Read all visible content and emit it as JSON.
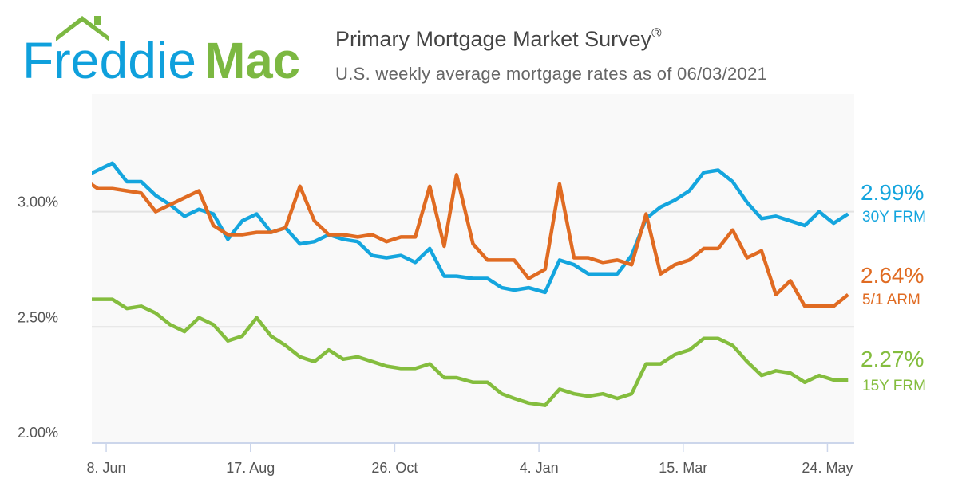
{
  "logo": {
    "word1": "Freddie",
    "word2": "Mac",
    "blue": "#0fa0dc",
    "green": "#7cb842"
  },
  "header": {
    "title": "Primary Mortgage Market Survey",
    "title_mark": "®",
    "subtitle": "U.S. weekly average mortgage rates as of 06/03/2021"
  },
  "chart_data": {
    "type": "line",
    "title": "Primary Mortgage Market Survey®",
    "subtitle": "U.S. weekly average mortgage rates as of 06/03/2021",
    "xlabel": "",
    "ylabel": "",
    "xlim": [
      "2020-06-01",
      "2021-06-06"
    ],
    "ylim": [
      2.0,
      3.51
    ],
    "grid": true,
    "y_ticks": [
      {
        "value": 2.0,
        "label": "2.00%"
      },
      {
        "value": 2.5,
        "label": "2.50%"
      },
      {
        "value": 3.0,
        "label": "3.00%"
      }
    ],
    "x_ticks": [
      {
        "date": "2020-06-08",
        "label": "8. Jun"
      },
      {
        "date": "2020-08-17",
        "label": "17. Aug"
      },
      {
        "date": "2020-10-26",
        "label": "26. Oct"
      },
      {
        "date": "2021-01-04",
        "label": "4. Jan"
      },
      {
        "date": "2021-03-15",
        "label": "15. Mar"
      },
      {
        "date": "2021-05-24",
        "label": "24. May"
      }
    ],
    "x": [
      "2020-05-28",
      "2020-06-04",
      "2020-06-11",
      "2020-06-18",
      "2020-06-25",
      "2020-07-02",
      "2020-07-09",
      "2020-07-16",
      "2020-07-23",
      "2020-07-30",
      "2020-08-06",
      "2020-08-13",
      "2020-08-20",
      "2020-08-27",
      "2020-09-03",
      "2020-09-10",
      "2020-09-17",
      "2020-09-24",
      "2020-10-01",
      "2020-10-08",
      "2020-10-15",
      "2020-10-22",
      "2020-10-29",
      "2020-11-05",
      "2020-11-12",
      "2020-11-19",
      "2020-11-25",
      "2020-12-03",
      "2020-12-10",
      "2020-12-17",
      "2020-12-23",
      "2020-12-30",
      "2021-01-07",
      "2021-01-14",
      "2021-01-21",
      "2021-01-28",
      "2021-02-04",
      "2021-02-11",
      "2021-02-18",
      "2021-02-25",
      "2021-03-04",
      "2021-03-11",
      "2021-03-18",
      "2021-03-25",
      "2021-04-01",
      "2021-04-08",
      "2021-04-15",
      "2021-04-22",
      "2021-04-29",
      "2021-05-06",
      "2021-05-13",
      "2021-05-20",
      "2021-05-27",
      "2021-06-03"
    ],
    "series": [
      {
        "name": "30Y FRM",
        "latest": "2.99%",
        "color": "#14a5de",
        "values": [
          3.15,
          3.18,
          3.21,
          3.13,
          3.13,
          3.07,
          3.03,
          2.98,
          3.01,
          2.99,
          2.88,
          2.96,
          2.99,
          2.91,
          2.93,
          2.86,
          2.87,
          2.9,
          2.88,
          2.87,
          2.81,
          2.8,
          2.81,
          2.78,
          2.84,
          2.72,
          2.72,
          2.71,
          2.71,
          2.67,
          2.66,
          2.67,
          2.65,
          2.79,
          2.77,
          2.73,
          2.73,
          2.73,
          2.81,
          2.97,
          3.02,
          3.05,
          3.09,
          3.17,
          3.18,
          3.13,
          3.04,
          2.97,
          2.98,
          2.96,
          2.94,
          3.0,
          2.95,
          2.99
        ]
      },
      {
        "name": "5/1 ARM",
        "latest": "2.64%",
        "color": "#e06b22",
        "values": [
          3.14,
          3.1,
          3.1,
          3.09,
          3.08,
          3.0,
          3.03,
          3.06,
          3.09,
          2.94,
          2.9,
          2.9,
          2.91,
          2.91,
          2.93,
          3.11,
          2.96,
          2.9,
          2.9,
          2.89,
          2.9,
          2.87,
          2.89,
          2.89,
          3.11,
          2.85,
          3.16,
          2.86,
          2.79,
          2.79,
          2.79,
          2.71,
          2.75,
          3.12,
          2.8,
          2.8,
          2.78,
          2.79,
          2.77,
          2.99,
          2.73,
          2.77,
          2.79,
          2.84,
          2.84,
          2.92,
          2.8,
          2.83,
          2.64,
          2.7,
          2.59,
          2.59,
          2.59,
          2.64
        ]
      },
      {
        "name": "15Y FRM",
        "latest": "2.27%",
        "color": "#84bd3e",
        "values": [
          2.62,
          2.62,
          2.62,
          2.58,
          2.59,
          2.56,
          2.51,
          2.48,
          2.54,
          2.51,
          2.44,
          2.46,
          2.54,
          2.46,
          2.42,
          2.37,
          2.35,
          2.4,
          2.36,
          2.37,
          2.35,
          2.33,
          2.32,
          2.32,
          2.34,
          2.28,
          2.28,
          2.26,
          2.26,
          2.21,
          2.19,
          2.17,
          2.16,
          2.23,
          2.21,
          2.2,
          2.21,
          2.19,
          2.21,
          2.34,
          2.34,
          2.38,
          2.4,
          2.45,
          2.45,
          2.42,
          2.35,
          2.29,
          2.31,
          2.3,
          2.26,
          2.29,
          2.27,
          2.27
        ]
      }
    ],
    "legend_placement": "right"
  }
}
